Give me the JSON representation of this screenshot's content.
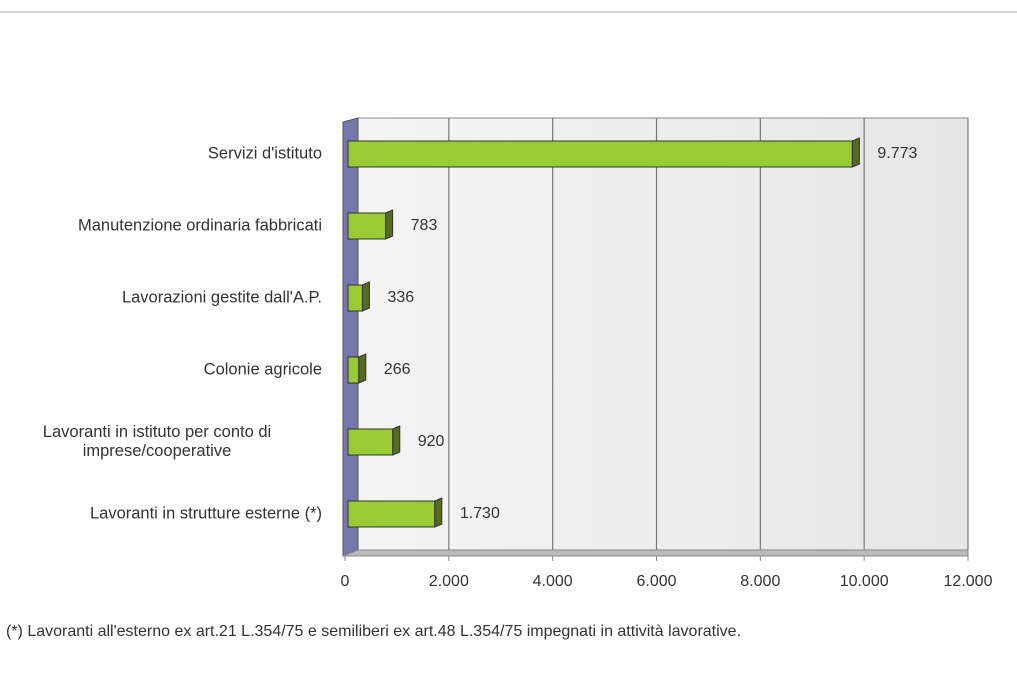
{
  "chart_data": {
    "type": "bar",
    "orientation": "horizontal",
    "categories": [
      "Servizi d'istituto",
      "Manutenzione ordinaria fabbricati",
      "Lavorazioni gestite dall'A.P.",
      "Colonie agricole",
      "Lavoranti in istituto per conto di imprese/cooperative",
      "Lavoranti in strutture esterne (*)"
    ],
    "values": [
      9773,
      783,
      336,
      266,
      920,
      1730
    ],
    "value_labels": [
      "9.773",
      "783",
      "336",
      "266",
      "920",
      "1.730"
    ],
    "color": "#99cc33",
    "xlim": [
      0,
      12000
    ],
    "xticks": [
      0,
      {
        "value": 2000,
        "label": "2.000"
      },
      {
        "value": 4000,
        "label": "4.000"
      },
      {
        "value": 6000,
        "label": "6.000"
      },
      {
        "value": 8000,
        "label": "8.000"
      },
      {
        "value": 10000,
        "label": "10.000"
      },
      {
        "value": 12000,
        "label": "12.000"
      }
    ],
    "grid": true,
    "footnote": "(*)  Lavoranti all'esterno ex art.21 L.354/75 e semiliberi ex art.48 L.354/75 impegnati in attività lavorative."
  }
}
